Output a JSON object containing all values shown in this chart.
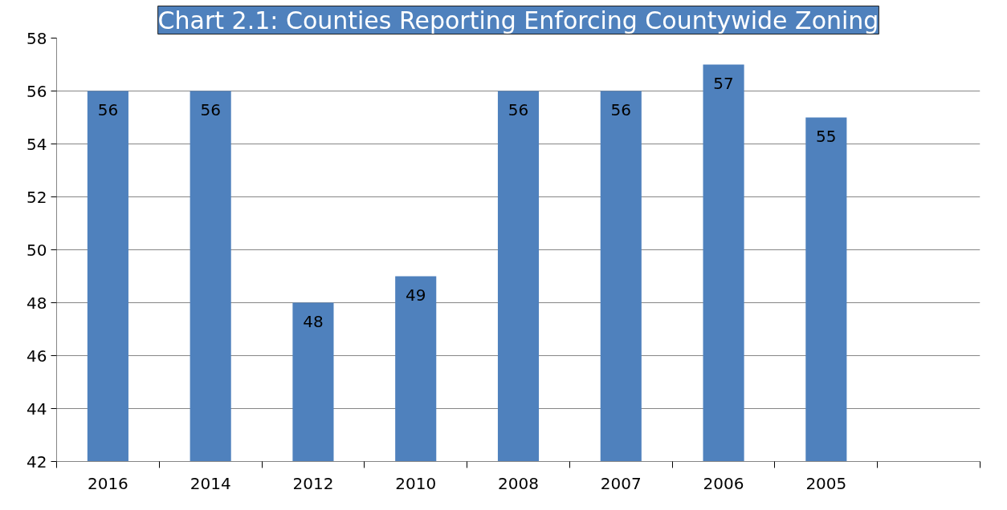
{
  "chart_data": {
    "type": "bar",
    "title": "Chart 2.1: Counties Reporting Enforcing Countywide Zoning",
    "categories": [
      "2016",
      "2014",
      "2012",
      "2010",
      "2008",
      "2007",
      "2006",
      "2005",
      null
    ],
    "values": [
      56,
      56,
      48,
      49,
      56,
      56,
      57,
      55,
      null
    ],
    "color": "#4f81bd",
    "ylim": [
      42,
      58
    ],
    "yticks": [
      42,
      44,
      46,
      48,
      50,
      52,
      54,
      56,
      58
    ],
    "grid": "y",
    "data_labels": true
  }
}
